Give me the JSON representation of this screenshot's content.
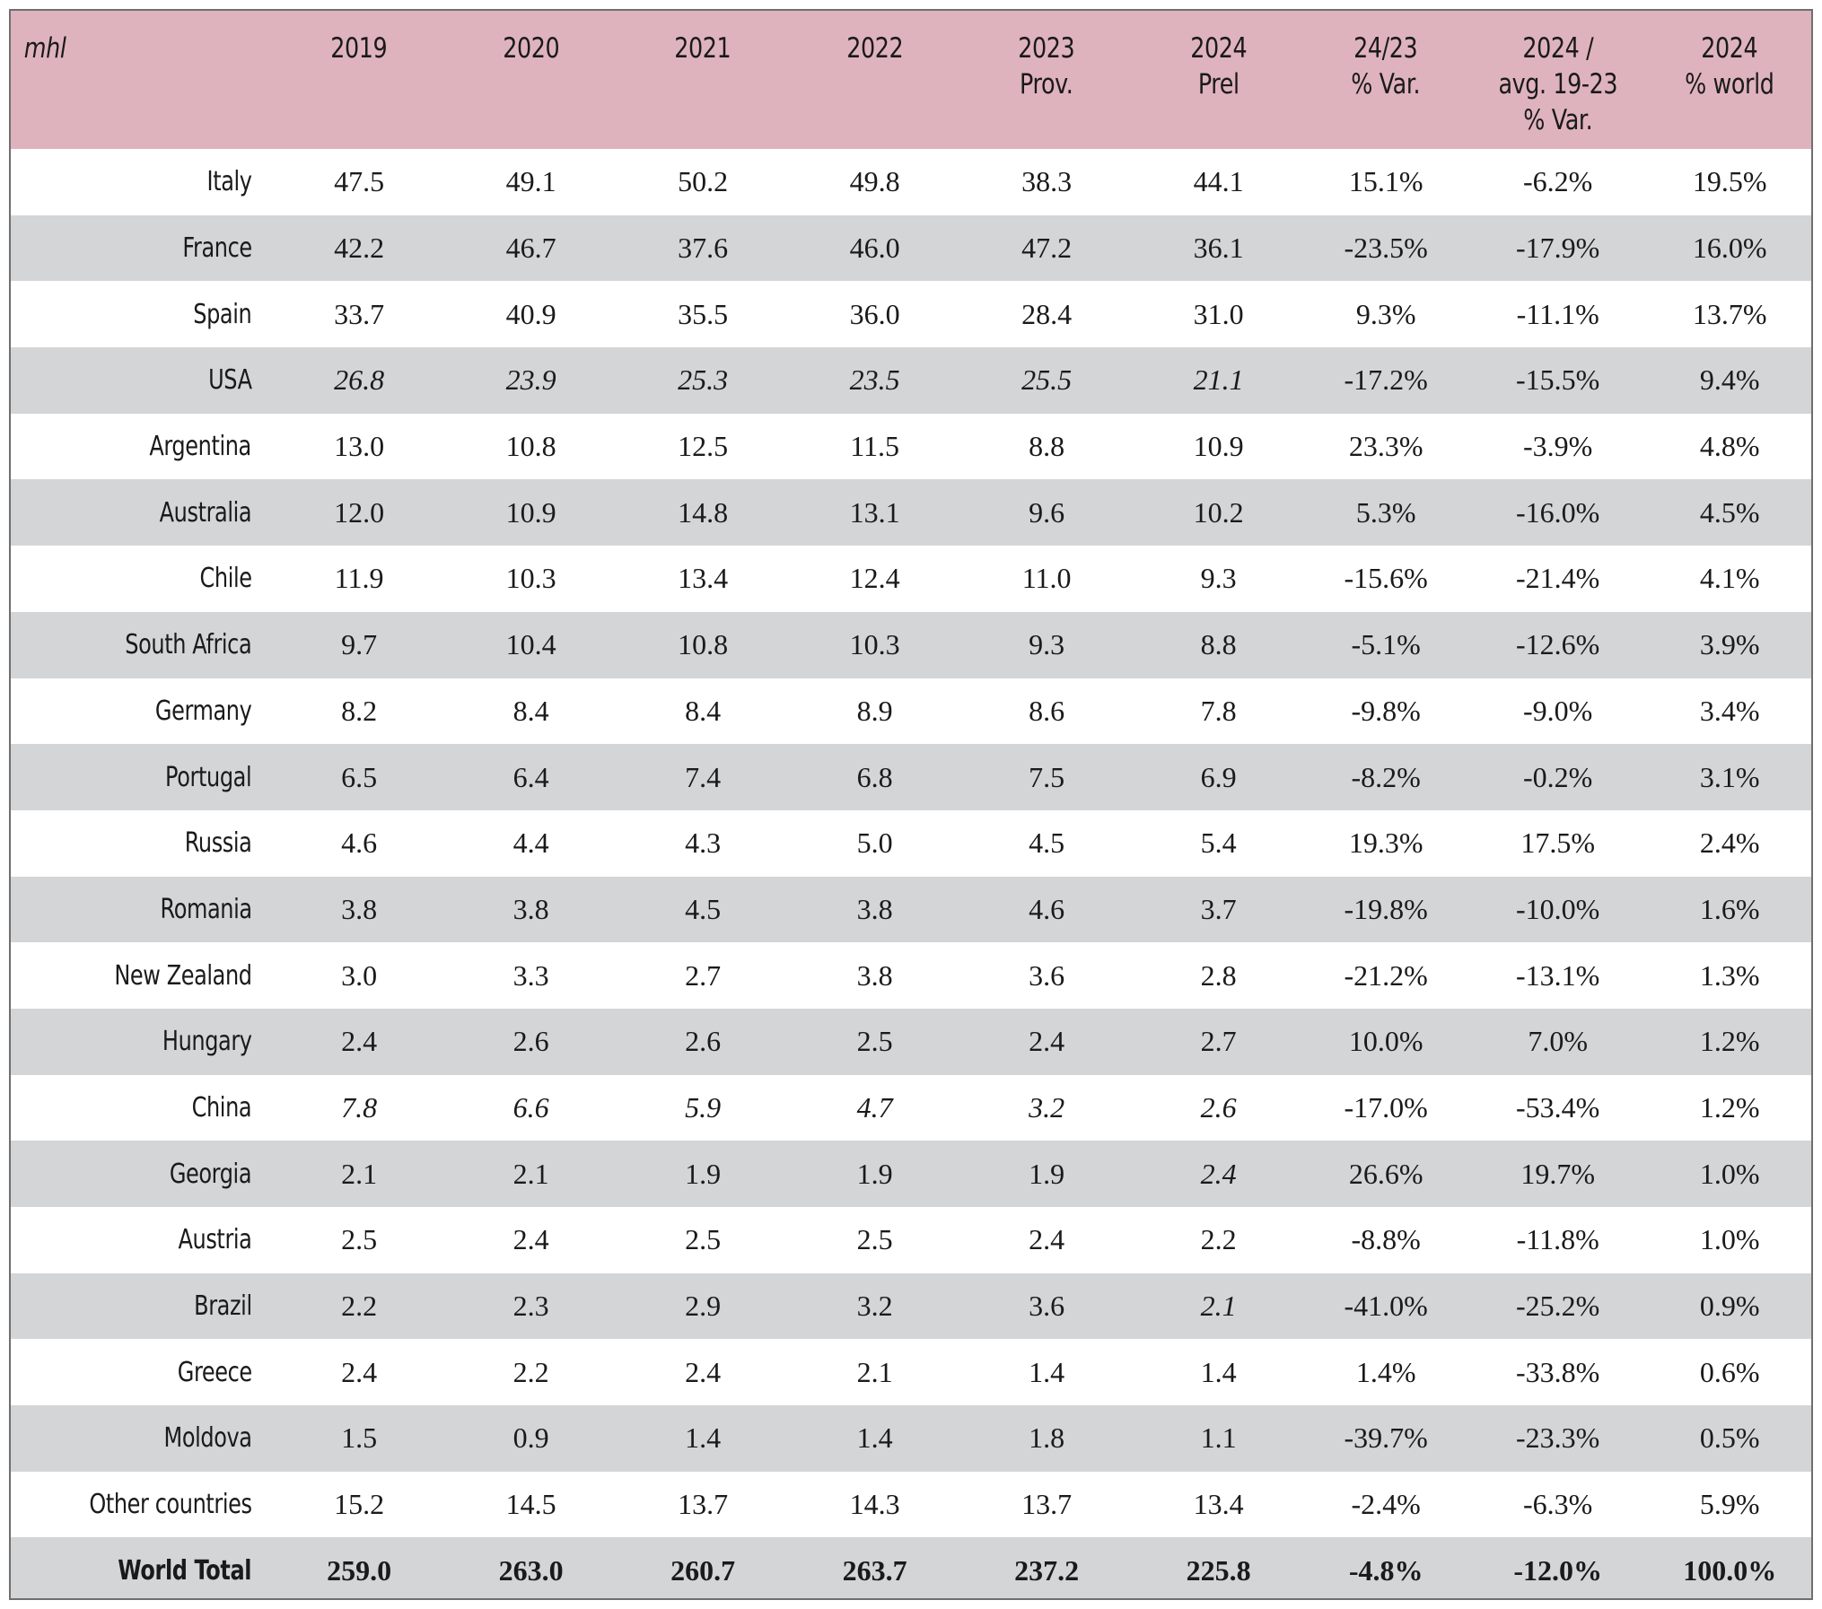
{
  "chart_data": {
    "type": "table",
    "unit": "mhl",
    "columns": [
      [
        "2019"
      ],
      [
        "2020"
      ],
      [
        "2021"
      ],
      [
        "2022"
      ],
      [
        "2023",
        "Prov."
      ],
      [
        "2024",
        "Prel"
      ],
      [
        "24/23",
        "% Var."
      ],
      [
        "2024 /",
        "avg. 19-23",
        "% Var."
      ],
      [
        "2024",
        "% world"
      ]
    ],
    "rows": [
      {
        "country": "Italy",
        "values": [
          "47.5",
          "49.1",
          "50.2",
          "49.8",
          "38.3",
          "44.1",
          "15.1%",
          "-6.2%",
          "19.5%"
        ],
        "estimated": []
      },
      {
        "country": "France",
        "values": [
          "42.2",
          "46.7",
          "37.6",
          "46.0",
          "47.2",
          "36.1",
          "-23.5%",
          "-17.9%",
          "16.0%"
        ],
        "estimated": []
      },
      {
        "country": "Spain",
        "values": [
          "33.7",
          "40.9",
          "35.5",
          "36.0",
          "28.4",
          "31.0",
          "9.3%",
          "-11.1%",
          "13.7%"
        ],
        "estimated": []
      },
      {
        "country": "USA",
        "values": [
          "26.8",
          "23.9",
          "25.3",
          "23.5",
          "25.5",
          "21.1",
          "-17.2%",
          "-15.5%",
          "9.4%"
        ],
        "estimated": [
          0,
          1,
          2,
          3,
          4,
          5
        ]
      },
      {
        "country": "Argentina",
        "values": [
          "13.0",
          "10.8",
          "12.5",
          "11.5",
          "8.8",
          "10.9",
          "23.3%",
          "-3.9%",
          "4.8%"
        ],
        "estimated": []
      },
      {
        "country": "Australia",
        "values": [
          "12.0",
          "10.9",
          "14.8",
          "13.1",
          "9.6",
          "10.2",
          "5.3%",
          "-16.0%",
          "4.5%"
        ],
        "estimated": []
      },
      {
        "country": "Chile",
        "values": [
          "11.9",
          "10.3",
          "13.4",
          "12.4",
          "11.0",
          "9.3",
          "-15.6%",
          "-21.4%",
          "4.1%"
        ],
        "estimated": []
      },
      {
        "country": "South Africa",
        "values": [
          "9.7",
          "10.4",
          "10.8",
          "10.3",
          "9.3",
          "8.8",
          "-5.1%",
          "-12.6%",
          "3.9%"
        ],
        "estimated": []
      },
      {
        "country": "Germany",
        "values": [
          "8.2",
          "8.4",
          "8.4",
          "8.9",
          "8.6",
          "7.8",
          "-9.8%",
          "-9.0%",
          "3.4%"
        ],
        "estimated": []
      },
      {
        "country": "Portugal",
        "values": [
          "6.5",
          "6.4",
          "7.4",
          "6.8",
          "7.5",
          "6.9",
          "-8.2%",
          "-0.2%",
          "3.1%"
        ],
        "estimated": []
      },
      {
        "country": "Russia",
        "values": [
          "4.6",
          "4.4",
          "4.3",
          "5.0",
          "4.5",
          "5.4",
          "19.3%",
          "17.5%",
          "2.4%"
        ],
        "estimated": []
      },
      {
        "country": "Romania",
        "values": [
          "3.8",
          "3.8",
          "4.5",
          "3.8",
          "4.6",
          "3.7",
          "-19.8%",
          "-10.0%",
          "1.6%"
        ],
        "estimated": []
      },
      {
        "country": "New Zealand",
        "values": [
          "3.0",
          "3.3",
          "2.7",
          "3.8",
          "3.6",
          "2.8",
          "-21.2%",
          "-13.1%",
          "1.3%"
        ],
        "estimated": []
      },
      {
        "country": "Hungary",
        "values": [
          "2.4",
          "2.6",
          "2.6",
          "2.5",
          "2.4",
          "2.7",
          "10.0%",
          "7.0%",
          "1.2%"
        ],
        "estimated": []
      },
      {
        "country": "China",
        "values": [
          "7.8",
          "6.6",
          "5.9",
          "4.7",
          "3.2",
          "2.6",
          "-17.0%",
          "-53.4%",
          "1.2%"
        ],
        "estimated": [
          0,
          1,
          2,
          3,
          4,
          5
        ]
      },
      {
        "country": "Georgia",
        "values": [
          "2.1",
          "2.1",
          "1.9",
          "1.9",
          "1.9",
          "2.4",
          "26.6%",
          "19.7%",
          "1.0%"
        ],
        "estimated": [
          5
        ]
      },
      {
        "country": "Austria",
        "values": [
          "2.5",
          "2.4",
          "2.5",
          "2.5",
          "2.4",
          "2.2",
          "-8.8%",
          "-11.8%",
          "1.0%"
        ],
        "estimated": []
      },
      {
        "country": "Brazil",
        "values": [
          "2.2",
          "2.3",
          "2.9",
          "3.2",
          "3.6",
          "2.1",
          "-41.0%",
          "-25.2%",
          "0.9%"
        ],
        "estimated": [
          5
        ]
      },
      {
        "country": "Greece",
        "values": [
          "2.4",
          "2.2",
          "2.4",
          "2.1",
          "1.4",
          "1.4",
          "1.4%",
          "-33.8%",
          "0.6%"
        ],
        "estimated": []
      },
      {
        "country": "Moldova",
        "values": [
          "1.5",
          "0.9",
          "1.4",
          "1.4",
          "1.8",
          "1.1",
          "-39.7%",
          "-23.3%",
          "0.5%"
        ],
        "estimated": []
      },
      {
        "country": "Other countries",
        "values": [
          "15.2",
          "14.5",
          "13.7",
          "14.3",
          "13.7",
          "13.4",
          "-2.4%",
          "-6.3%",
          "5.9%"
        ],
        "estimated": []
      }
    ],
    "total": {
      "country": "World Total",
      "values": [
        "259.0",
        "263.0",
        "260.7",
        "263.7",
        "237.2",
        "225.8",
        "-4.8%",
        "-12.0%",
        "100.0%"
      ]
    }
  },
  "colors": {
    "header_bg": "#dfb3bd",
    "band_bg": "#d3d5d7",
    "text": "#1a1a1a",
    "border": "#6f6f6f"
  }
}
